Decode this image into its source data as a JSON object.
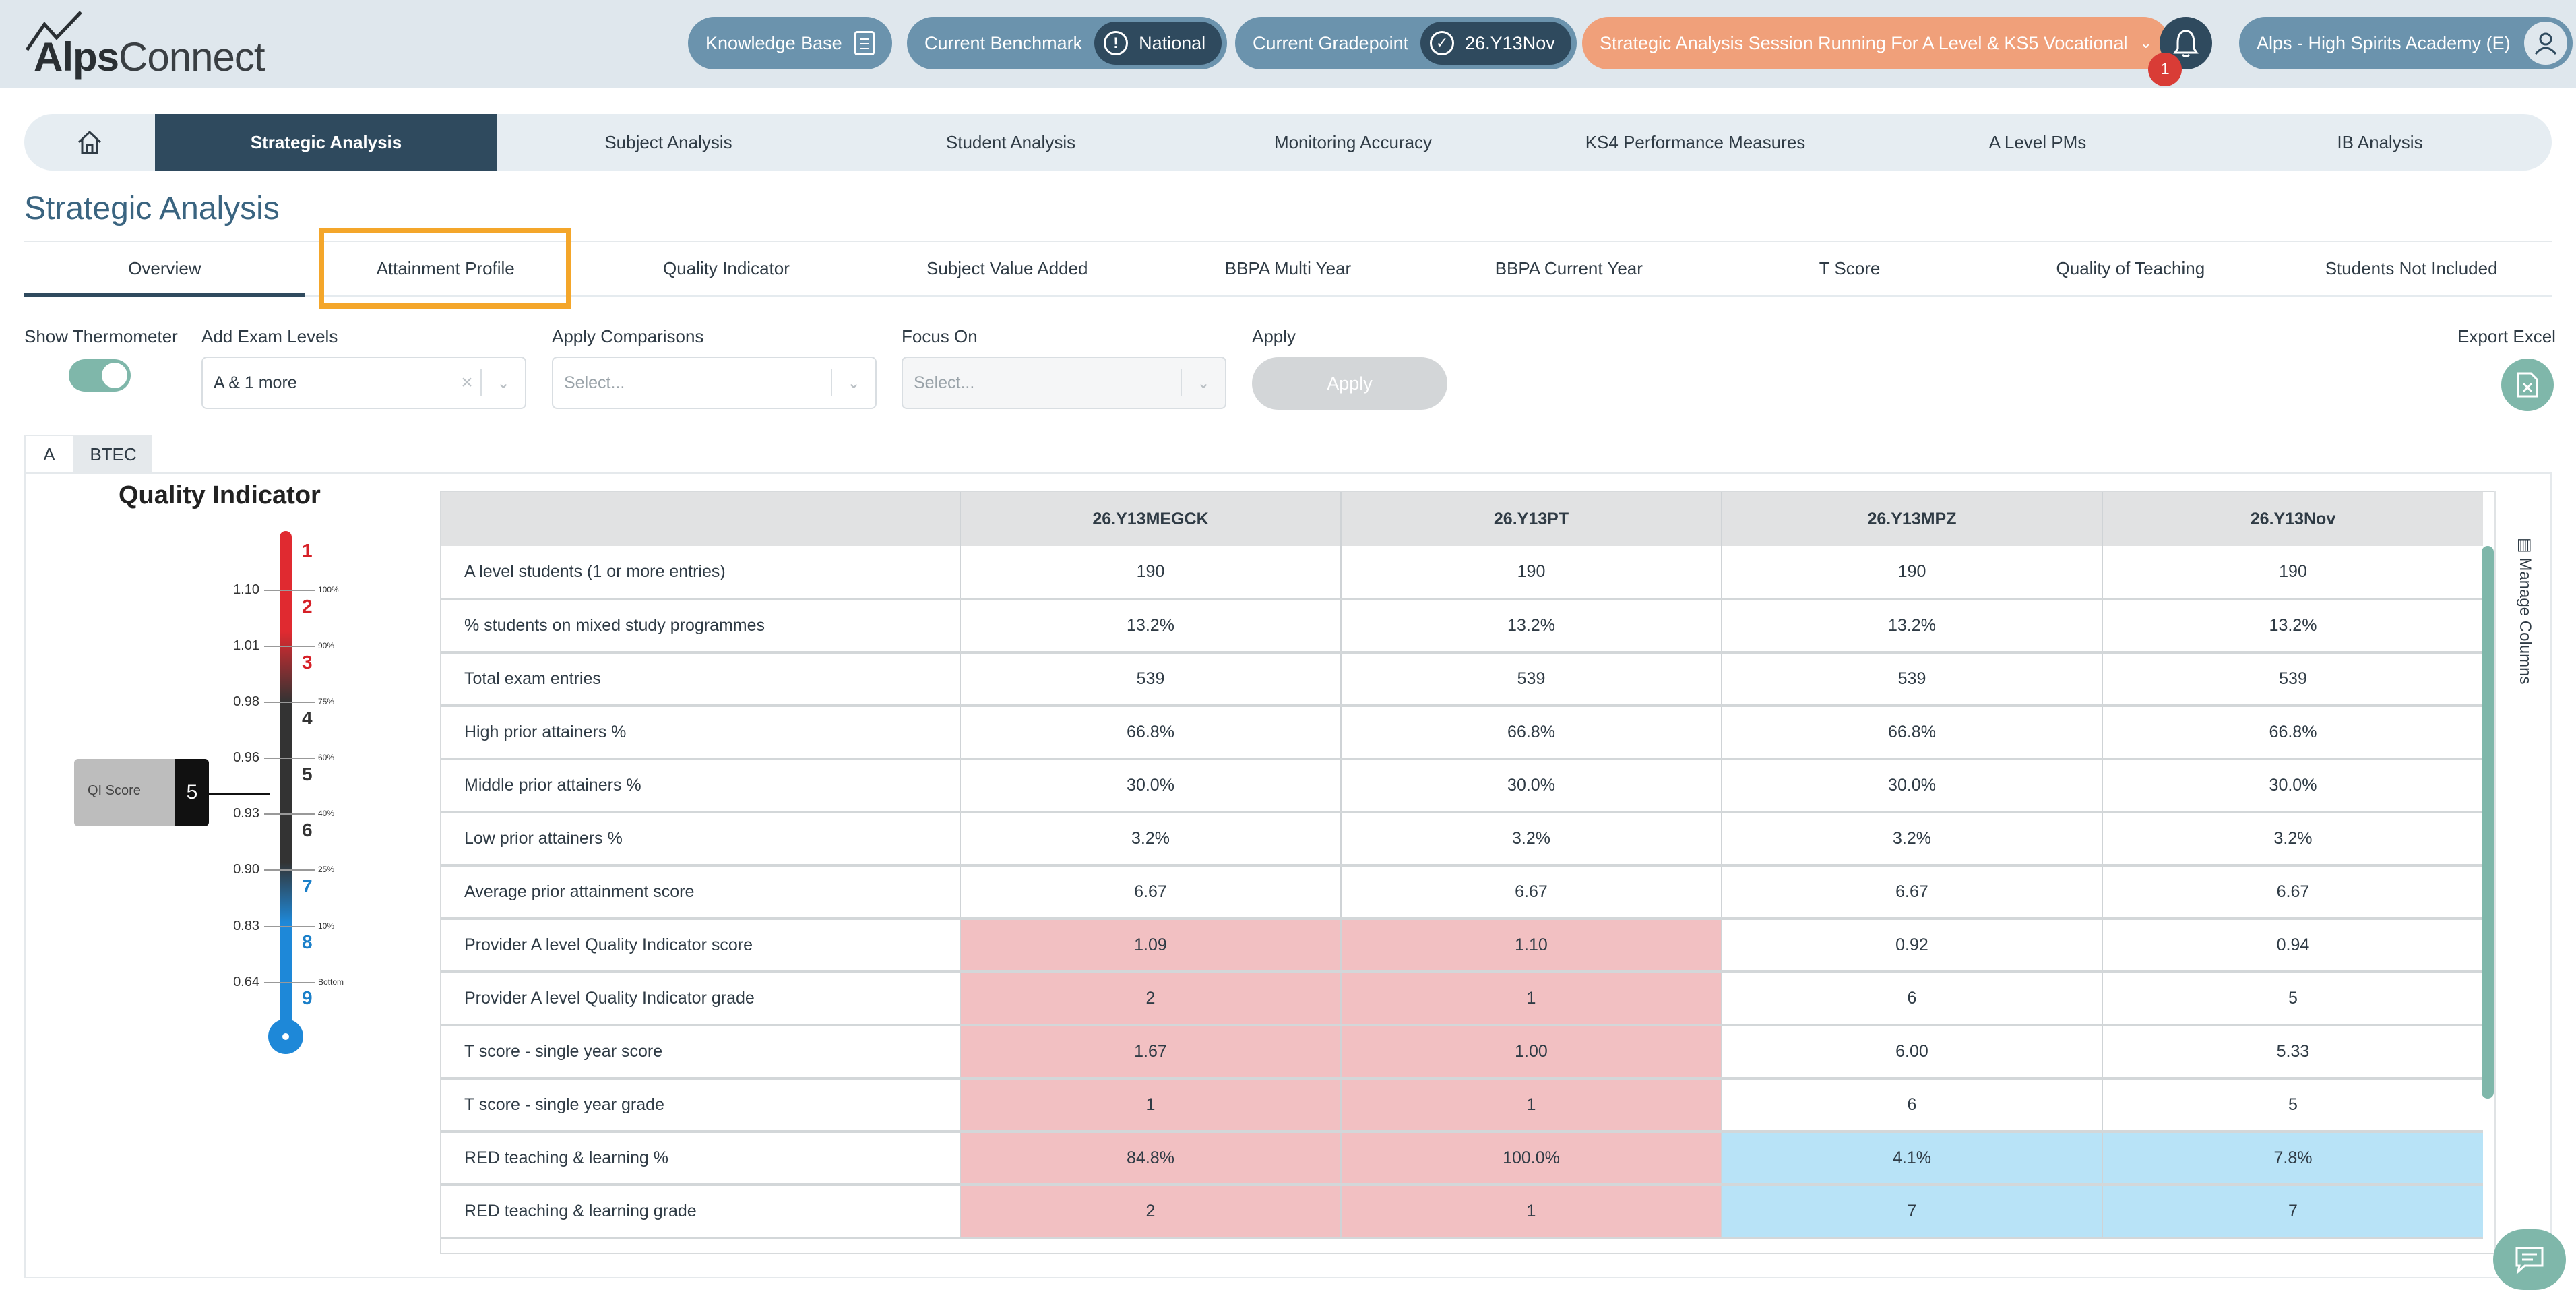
{
  "header": {
    "logo_part1": "Alps",
    "logo_part2": "Connect",
    "knowledge_base": "Knowledge Base",
    "benchmark_label": "Current Benchmark",
    "benchmark_value": "National",
    "gradepoint_label": "Current Gradepoint",
    "gradepoint_value": "26.Y13Nov",
    "session": "Strategic Analysis Session Running For A Level & KS5 Vocational",
    "notification_count": "1",
    "school": "Alps - High Spirits Academy (E)"
  },
  "main_nav": {
    "items": [
      "Strategic Analysis",
      "Subject Analysis",
      "Student Analysis",
      "Monitoring Accuracy",
      "KS4 Performance Measures",
      "A Level PMs",
      "IB Analysis"
    ]
  },
  "page_title": "Strategic Analysis",
  "sub_tabs": [
    "Overview",
    "Attainment Profile",
    "Quality Indicator",
    "Subject Value Added",
    "BBPA Multi Year",
    "BBPA Current Year",
    "T Score",
    "Quality of Teaching",
    "Students Not Included"
  ],
  "controls": {
    "show_thermometer": "Show Thermometer",
    "add_exam_levels": "Add Exam Levels",
    "exam_levels_value": "A & 1 more",
    "apply_comparisons": "Apply Comparisons",
    "comparisons_placeholder": "Select...",
    "focus_on": "Focus On",
    "focus_placeholder": "Select...",
    "apply_label": "Apply",
    "apply_button": "Apply",
    "export_excel": "Export Excel"
  },
  "level_tabs": [
    "A",
    "BTEC"
  ],
  "thermometer": {
    "title": "Quality Indicator",
    "values": [
      "1.10",
      "1.01",
      "0.98",
      "0.96",
      "0.93",
      "0.90",
      "0.83",
      "0.64"
    ],
    "percentiles": [
      "100%",
      "90%",
      "75%",
      "60%",
      "40%",
      "25%",
      "10%",
      "Bottom"
    ],
    "grades": [
      "1",
      "2",
      "3",
      "4",
      "5",
      "6",
      "7",
      "8",
      "9"
    ],
    "qi_score_label": "QI Score",
    "qi_score_value": "5"
  },
  "table": {
    "columns": [
      "26.Y13MEGCK",
      "26.Y13PT",
      "26.Y13MPZ",
      "26.Y13Nov"
    ],
    "rows": [
      {
        "label": "A level students (1 or more entries)",
        "values": [
          "190",
          "190",
          "190",
          "190"
        ]
      },
      {
        "label": "% students on mixed study programmes",
        "values": [
          "13.2%",
          "13.2%",
          "13.2%",
          "13.2%"
        ]
      },
      {
        "label": "Total exam entries",
        "values": [
          "539",
          "539",
          "539",
          "539"
        ]
      },
      {
        "label": "High prior attainers %",
        "values": [
          "66.8%",
          "66.8%",
          "66.8%",
          "66.8%"
        ]
      },
      {
        "label": "Middle prior attainers %",
        "values": [
          "30.0%",
          "30.0%",
          "30.0%",
          "30.0%"
        ]
      },
      {
        "label": "Low prior attainers %",
        "values": [
          "3.2%",
          "3.2%",
          "3.2%",
          "3.2%"
        ]
      },
      {
        "label": "Average prior attainment score",
        "values": [
          "6.67",
          "6.67",
          "6.67",
          "6.67"
        ]
      },
      {
        "label": "Provider A level Quality Indicator score",
        "values": [
          "1.09",
          "1.10",
          "0.92",
          "0.94"
        ]
      },
      {
        "label": "Provider A level Quality Indicator grade",
        "values": [
          "2",
          "1",
          "6",
          "5"
        ]
      },
      {
        "label": "T score - single year score",
        "values": [
          "1.67",
          "1.00",
          "6.00",
          "5.33"
        ]
      },
      {
        "label": "T score - single year grade",
        "values": [
          "1",
          "1",
          "6",
          "5"
        ]
      },
      {
        "label": "RED teaching & learning %",
        "values": [
          "84.8%",
          "100.0%",
          "4.1%",
          "7.8%"
        ]
      },
      {
        "label": "RED teaching & learning grade",
        "values": [
          "2",
          "1",
          "7",
          "7"
        ]
      }
    ],
    "manage_columns": "Manage Columns"
  }
}
